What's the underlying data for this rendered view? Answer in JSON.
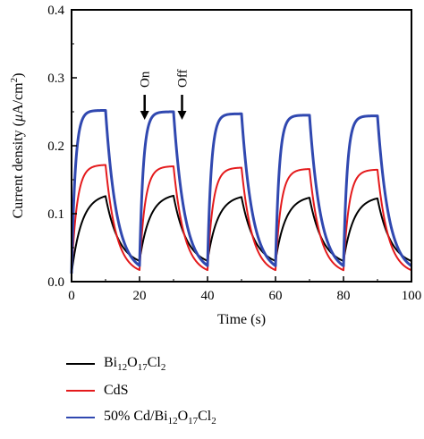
{
  "chart_data": {
    "type": "line",
    "xlabel": "Time (s)",
    "ylabel_main": "Current density (",
    "ylabel_mu": "μ",
    "ylabel_unit": "A/cm",
    "ylabel_sup": "2",
    "ylabel_close": ")",
    "xlim": [
      0,
      100
    ],
    "ylim": [
      0,
      0.4
    ],
    "x_ticks": [
      0,
      20,
      40,
      60,
      80,
      100
    ],
    "x_tick_labels": [
      "0",
      "20",
      "40",
      "60",
      "80",
      "100"
    ],
    "y_ticks": [
      0.0,
      0.1,
      0.2,
      0.3,
      0.4
    ],
    "y_tick_labels": [
      "0.0",
      "0.1",
      "0.2",
      "0.3",
      "0.4"
    ],
    "on_periods": [
      [
        0,
        10
      ],
      [
        20,
        30
      ],
      [
        40,
        50
      ],
      [
        60,
        70
      ],
      [
        80,
        90
      ]
    ],
    "annotations": [
      {
        "text": "On",
        "x": 21.5
      },
      {
        "text": "Off",
        "x": 32.5
      }
    ],
    "series": [
      {
        "id": "bi",
        "name": "Bi₁₂O₁₇Cl₂",
        "color": "#000000",
        "base": 0.012,
        "peaks": [
          0.13,
          0.13,
          0.128,
          0.127,
          0.126
        ],
        "rise": 3.0,
        "decay": 4.0,
        "tail": 0.022
      },
      {
        "id": "cds",
        "name": "CdS",
        "color": "#e41a1c",
        "base": 0.012,
        "peaks": [
          0.172,
          0.17,
          0.168,
          0.166,
          0.165
        ],
        "rise": 1.6,
        "decay": 3.2,
        "tail": 0.01
      },
      {
        "id": "comp",
        "name": "50% Cd/Bi₁₂O₁₇Cl₂",
        "color": "#3048b0",
        "base": 0.012,
        "peaks": [
          0.252,
          0.25,
          0.247,
          0.245,
          0.244
        ],
        "rise": 1.1,
        "decay": 3.3,
        "tail": 0.012
      }
    ],
    "legend": {
      "placement": "below",
      "entries": [
        {
          "prefix": "Bi",
          "s1": "12",
          "mid": "O",
          "s2": "17",
          "end": "Cl",
          "s3": "2",
          "color": "#000000"
        },
        {
          "prefix": "CdS",
          "s1": "",
          "mid": "",
          "s2": "",
          "end": "",
          "s3": "",
          "color": "#e41a1c"
        },
        {
          "prefix": "50% Cd/Bi",
          "s1": "12",
          "mid": "O",
          "s2": "17",
          "end": "Cl",
          "s3": "2",
          "color": "#3048b0"
        }
      ]
    }
  }
}
